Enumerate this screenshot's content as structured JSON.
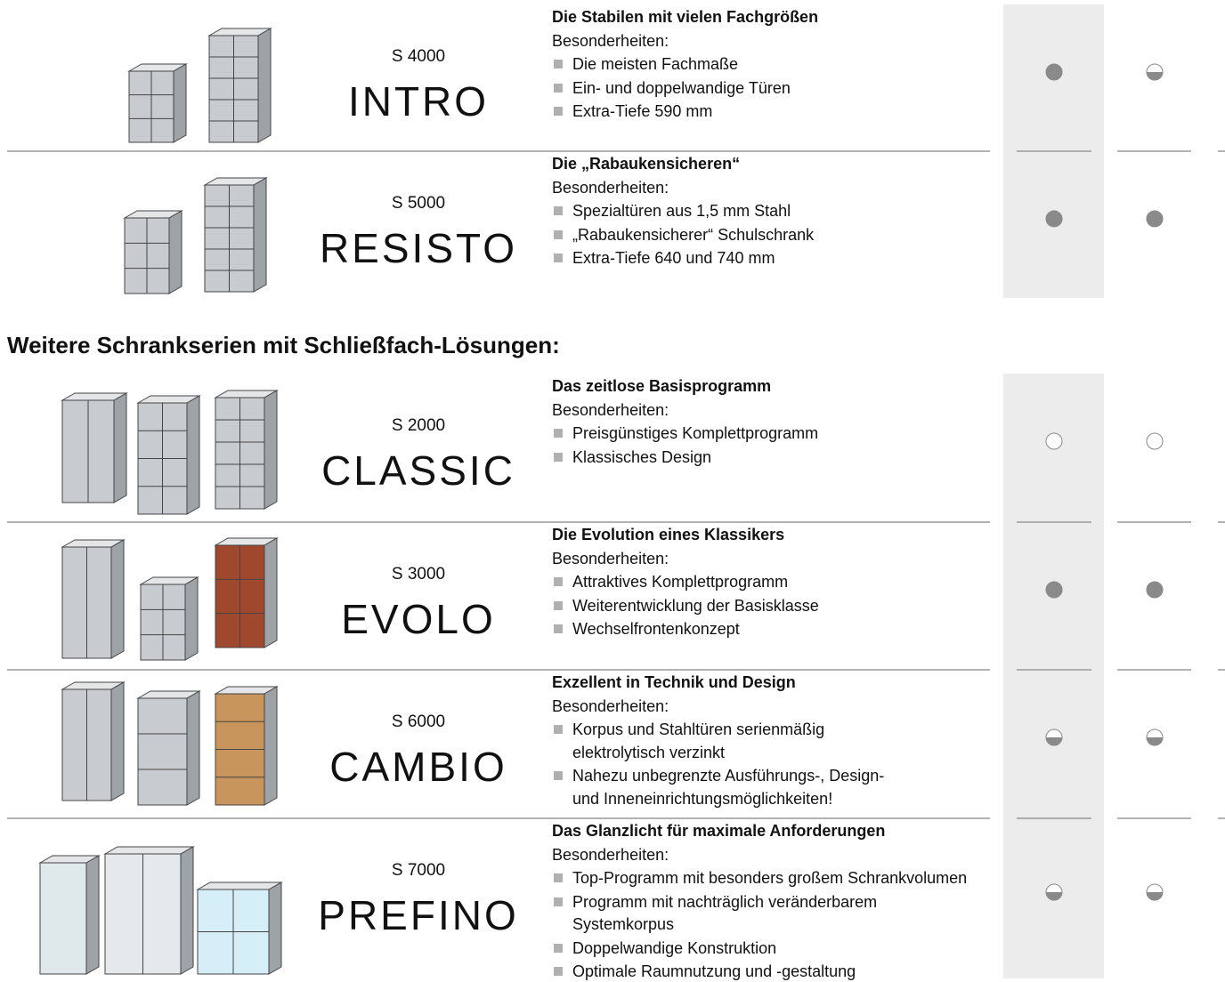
{
  "top_rows": [
    {
      "code": "S 4000",
      "name": "INTRO",
      "title": "Die Stabilen mit vielen Fachgrößen",
      "subtitle": "Besonderheiten:",
      "bullets": [
        [
          "Die meisten Fachmaße"
        ],
        [
          "Ein- und doppelwandige Türen"
        ],
        [
          "Extra-Tiefe 590 mm"
        ]
      ]
    },
    {
      "code": "S 5000",
      "name": "RESISTO",
      "title": "Die „Rabaukensicheren“",
      "subtitle": "Besonderheiten:",
      "bullets": [
        [
          "Spezialtüren aus 1,5 mm Stahl"
        ],
        [
          "„Rabaukensicherer“ Schulschrank"
        ],
        [
          "Extra-Tiefe 640 und 740 mm"
        ]
      ]
    }
  ],
  "heading": "Weitere Schrankserien mit Schließfach-Lösungen:",
  "rows": [
    {
      "code": "S 2000",
      "name": "CLASSIC",
      "title": "Das zeitlose Basisprogramm",
      "subtitle": "Besonderheiten:",
      "bullets": [
        [
          "Preisgünstiges Komplettprogramm"
        ],
        [
          "Klassisches Design"
        ]
      ]
    },
    {
      "code": "S 3000",
      "name": "EVOLO",
      "title": "Die Evolution eines Klassikers",
      "subtitle": "Besonderheiten:",
      "bullets": [
        [
          "Attraktives Komplettprogramm"
        ],
        [
          "Weiterentwicklung der Basisklasse"
        ],
        [
          "Wechselfrontenkonzept"
        ]
      ]
    },
    {
      "code": "S 6000",
      "name": "CAMBIO",
      "title": "Exzellent in Technik und Design",
      "subtitle": "Besonderheiten:",
      "bullets": [
        [
          "Korpus und Stahltüren serienmäßig",
          "elektrolytisch verzinkt"
        ],
        [
          "Nahezu unbegrenzte Ausführungs-, Design-",
          "und Inneneinrichtungsmöglichkeiten!"
        ]
      ]
    },
    {
      "code": "S 7000",
      "name": "PREFINO",
      "title": "Das Glanzlicht für maximale Anforderungen",
      "subtitle": "Besonderheiten:",
      "bullets": [
        [
          "Top-Programm mit besonders großem Schrankvolumen"
        ],
        [
          "Programm mit nachträglich veränderbarem",
          "Systemkorpus"
        ],
        [
          "Doppelwandige Konstruktion"
        ],
        [
          "Optimale Raumnutzung und -gestaltung"
        ]
      ]
    }
  ]
}
